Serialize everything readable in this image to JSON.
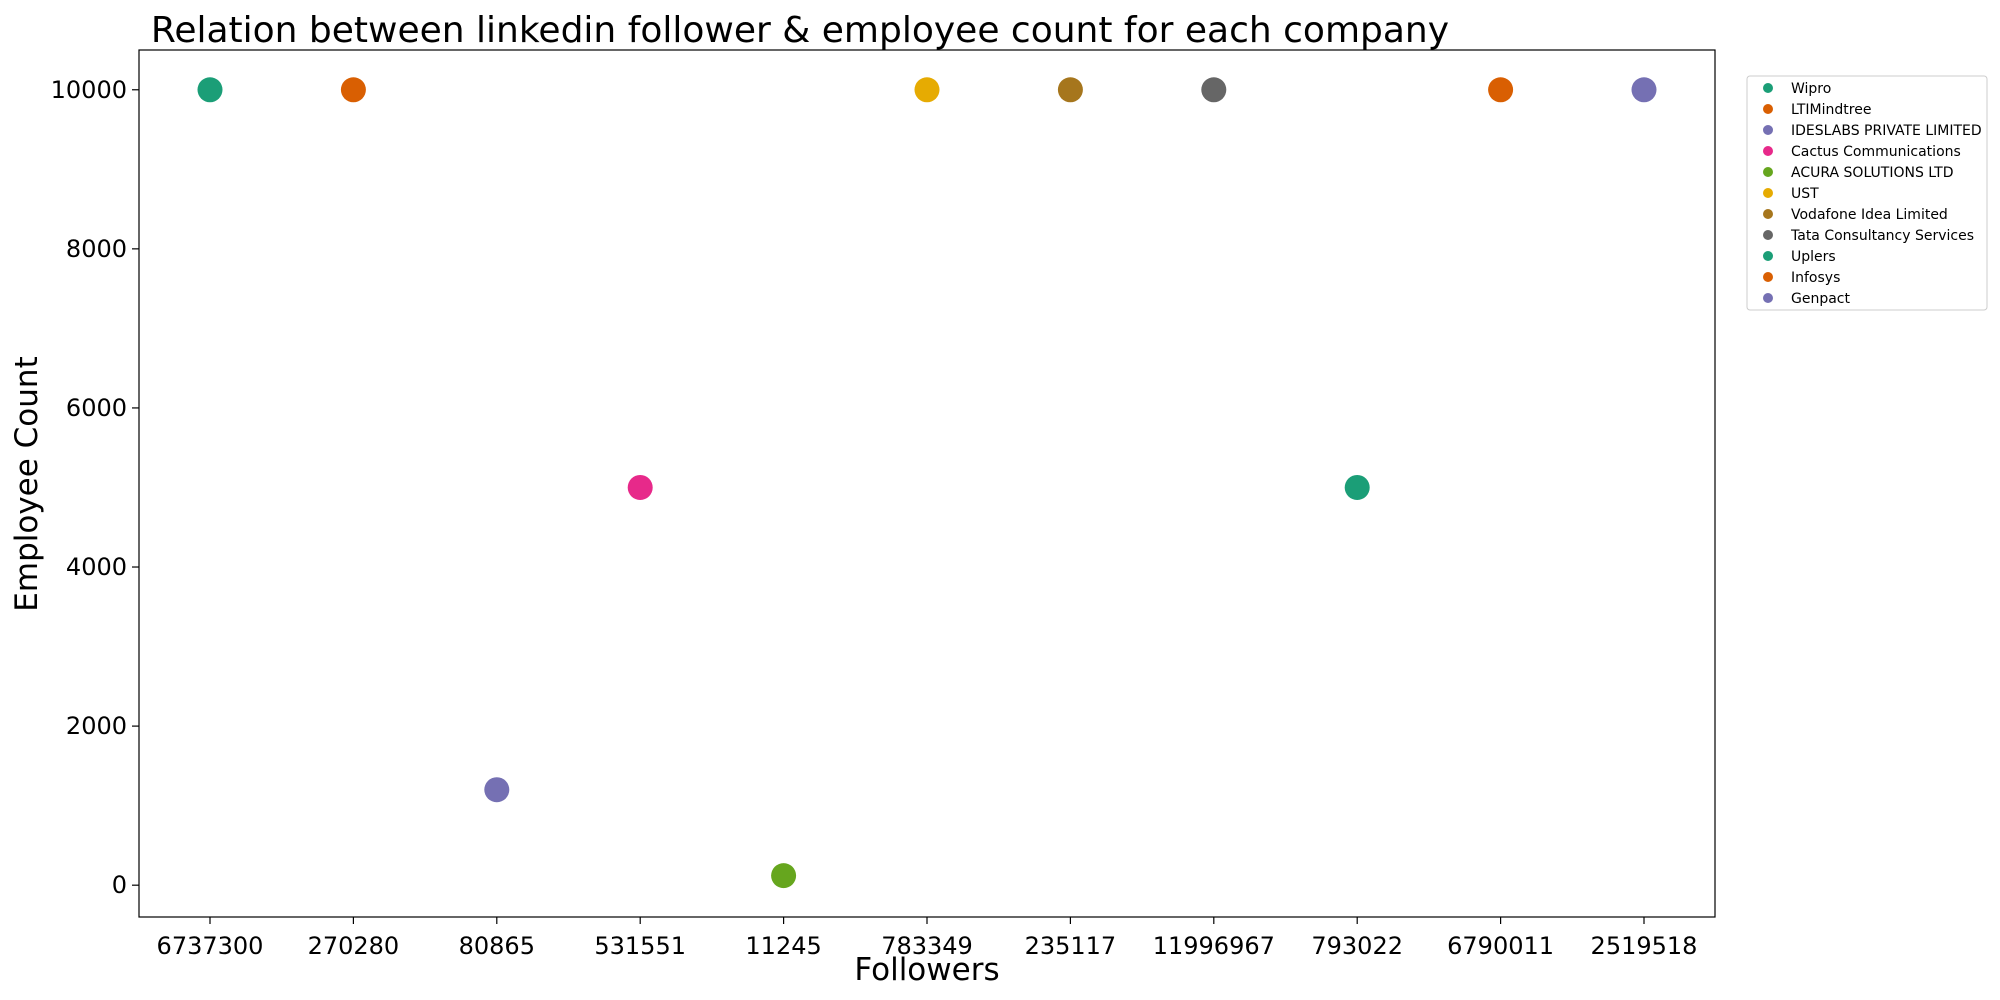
{
  "chart_data": {
    "type": "scatter",
    "title": "Relation between linkedin follower & employee count for each company",
    "xlabel": "Followers",
    "ylabel": "Employee Count",
    "x_axis_type": "categorical",
    "ylim": [
      -400,
      10500
    ],
    "yticks": [
      0,
      2000,
      4000,
      6000,
      8000,
      10000
    ],
    "legend_position": "outside-right-top",
    "grid": false,
    "points": [
      {
        "company": "Wipro",
        "followers": "6737300",
        "employees": 10000,
        "color": "#1b9e77"
      },
      {
        "company": "LTIMindtree",
        "followers": "270280",
        "employees": 10000,
        "color": "#d95f02"
      },
      {
        "company": "IDESLABS PRIVATE LIMITED",
        "followers": "80865",
        "employees": 1200,
        "color": "#7570b3"
      },
      {
        "company": "Cactus Communications",
        "followers": "531551",
        "employees": 5000,
        "color": "#e7298a"
      },
      {
        "company": "ACURA SOLUTIONS LTD",
        "followers": "11245",
        "employees": 120,
        "color": "#66a61e"
      },
      {
        "company": "UST",
        "followers": "783349",
        "employees": 10000,
        "color": "#e6ab02"
      },
      {
        "company": "Vodafone Idea Limited",
        "followers": "235117",
        "employees": 10000,
        "color": "#a6761d"
      },
      {
        "company": "Tata Consultancy Services",
        "followers": "11996967",
        "employees": 10000,
        "color": "#666666"
      },
      {
        "company": "Uplers",
        "followers": "793022",
        "employees": 5000,
        "color": "#1b9e77"
      },
      {
        "company": "Infosys",
        "followers": "6790011",
        "employees": 10000,
        "color": "#d95f02"
      },
      {
        "company": "Genpact",
        "followers": "2519518",
        "employees": 10000,
        "color": "#7570b3"
      }
    ]
  }
}
